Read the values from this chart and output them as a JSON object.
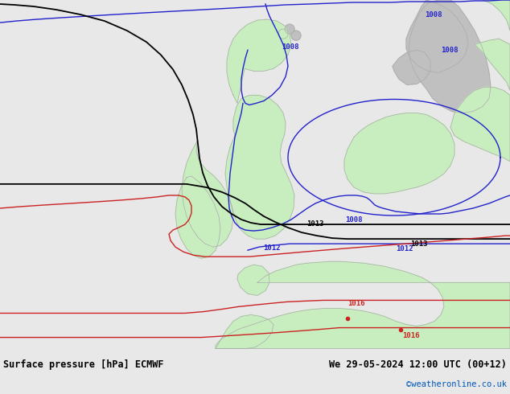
{
  "title_left": "Surface pressure [hPa] ECMWF",
  "title_right": "We 29-05-2024 12:00 UTC (00+12)",
  "copyright": "©weatheronline.co.uk",
  "bg_color": "#d4d4d4",
  "land_green": "#c8eec0",
  "land_gray": "#c0c0c0",
  "bottom_bg": "#e8e8e8",
  "blue": "#2222cc",
  "black": "#000000",
  "red": "#cc2222",
  "coast_edge": "#aaaaaa",
  "figsize": [
    6.34,
    4.9
  ],
  "dpi": 100
}
